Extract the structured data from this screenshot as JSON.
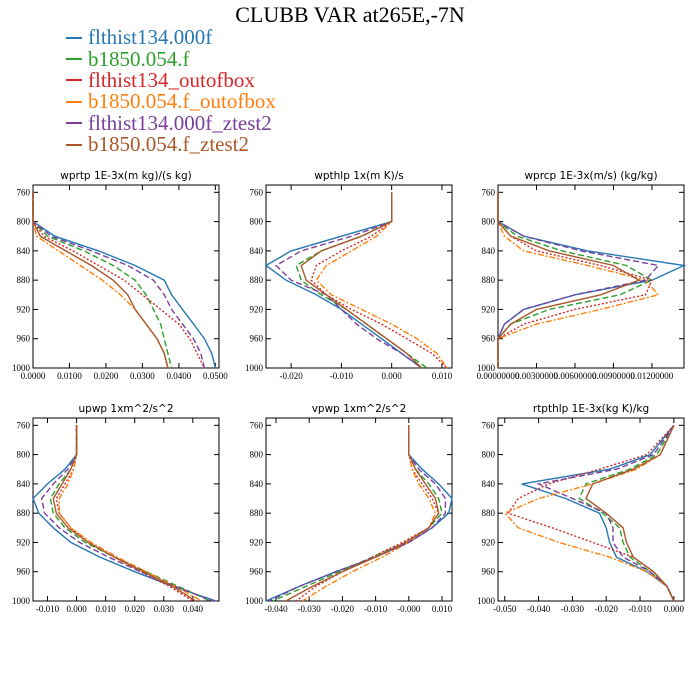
{
  "title": "CLUBB VAR at265E,-7N",
  "legend": [
    {
      "label": "flthist134.000f",
      "color": "#2678b3",
      "dash": ""
    },
    {
      "label": "b1850.054.f",
      "color": "#2ca02c",
      "dash": "6,3"
    },
    {
      "label": "flthist134_outofbox",
      "color": "#d62728",
      "dash": "2,2"
    },
    {
      "label": "b1850.054.f_outofbox",
      "color": "#ff7f0e",
      "dash": "6,2,2,2"
    },
    {
      "label": "flthist134.000f_ztest2",
      "color": "#7b3f9e",
      "dash": "6,3"
    },
    {
      "label": "b1850.054.f_ztest2",
      "color": "#a9582b",
      "dash": ""
    }
  ],
  "chart_data": [
    {
      "type": "line",
      "title": "wprtp  1E-3x(m kg)/(s kg)",
      "xlim": [
        0.0,
        0.051
      ],
      "ylim": [
        1000,
        750
      ],
      "xticks": [
        "0.0000",
        "0.0100",
        "0.0200",
        "0.0300",
        "0.0400",
        "0.0500"
      ],
      "xtick_values": [
        0.0,
        0.01,
        0.02,
        0.03,
        0.04,
        0.05
      ],
      "yticks": [
        760,
        800,
        840,
        880,
        920,
        960,
        1000
      ],
      "y": [
        760,
        800,
        820,
        840,
        860,
        880,
        900,
        920,
        940,
        960,
        980,
        1000
      ],
      "series": [
        {
          "values": [
            0.0,
            0.0,
            0.006,
            0.018,
            0.028,
            0.036,
            0.038,
            0.041,
            0.044,
            0.047,
            0.049,
            0.05
          ]
        },
        {
          "values": [
            0.0,
            0.0,
            0.004,
            0.014,
            0.022,
            0.028,
            0.031,
            0.033,
            0.035,
            0.036,
            0.037,
            0.038
          ]
        },
        {
          "values": [
            0.0,
            0.0,
            0.003,
            0.011,
            0.018,
            0.025,
            0.03,
            0.035,
            0.04,
            0.043,
            0.045,
            0.047
          ]
        },
        {
          "values": [
            0.0,
            0.0,
            0.001,
            0.007,
            0.013,
            0.019,
            0.024,
            0.028,
            0.031,
            0.034,
            0.036,
            0.037
          ]
        },
        {
          "values": [
            0.0,
            0.0,
            0.005,
            0.016,
            0.026,
            0.033,
            0.036,
            0.038,
            0.041,
            0.044,
            0.046,
            0.047
          ]
        },
        {
          "values": [
            0.0,
            0.0,
            0.002,
            0.009,
            0.016,
            0.022,
            0.026,
            0.028,
            0.031,
            0.034,
            0.036,
            0.037
          ]
        }
      ]
    },
    {
      "type": "line",
      "title": "wpthlp  1x(m K)/s",
      "xlim": [
        -0.025,
        0.012
      ],
      "ylim": [
        1000,
        750
      ],
      "xticks": [
        "-0.020",
        "-0.010",
        "0.000",
        "0.010"
      ],
      "xtick_values": [
        -0.02,
        -0.01,
        0.0,
        0.01
      ],
      "yticks": [
        760,
        800,
        840,
        880,
        920,
        960,
        1000
      ],
      "y": [
        760,
        800,
        820,
        840,
        860,
        880,
        900,
        920,
        940,
        960,
        980,
        1000
      ],
      "series": [
        {
          "values": [
            0.0,
            0.0,
            -0.01,
            -0.02,
            -0.025,
            -0.021,
            -0.015,
            -0.01,
            -0.006,
            -0.002,
            0.002,
            0.006
          ]
        },
        {
          "values": [
            0.0,
            0.0,
            -0.006,
            -0.014,
            -0.019,
            -0.018,
            -0.014,
            -0.009,
            -0.005,
            -0.001,
            0.003,
            0.007
          ]
        },
        {
          "values": [
            0.0,
            0.0,
            -0.004,
            -0.01,
            -0.015,
            -0.016,
            -0.013,
            -0.008,
            -0.002,
            0.003,
            0.008,
            0.011
          ]
        },
        {
          "values": [
            0.0,
            0.0,
            -0.003,
            -0.008,
            -0.013,
            -0.015,
            -0.012,
            -0.006,
            0.0,
            0.005,
            0.009,
            0.011
          ]
        },
        {
          "values": [
            0.0,
            0.0,
            -0.008,
            -0.018,
            -0.023,
            -0.02,
            -0.013,
            -0.01,
            -0.007,
            -0.003,
            0.002,
            0.006
          ]
        },
        {
          "values": [
            0.0,
            0.0,
            -0.006,
            -0.014,
            -0.018,
            -0.017,
            -0.013,
            -0.009,
            -0.005,
            -0.001,
            0.003,
            0.006
          ]
        }
      ]
    },
    {
      "type": "line",
      "title": "wprcp  1E-3x(m/s) (kg/kg)",
      "xlim": [
        0.0,
        0.0145
      ],
      "ylim": [
        1000,
        750
      ],
      "xticks": [
        "0.00000000",
        "0.00300000",
        "0.00600000",
        "0.00900000",
        "0.01200000"
      ],
      "xtick_values": [
        0.0,
        0.003,
        0.006,
        0.009,
        0.012
      ],
      "yticks": [
        760,
        800,
        840,
        880,
        920,
        960,
        1000
      ],
      "y": [
        760,
        800,
        820,
        840,
        860,
        880,
        900,
        920,
        940,
        960,
        980,
        1000
      ],
      "series": [
        {
          "values": [
            0.0,
            0.0,
            0.002,
            0.007,
            0.0145,
            0.012,
            0.006,
            0.002,
            0.0005,
            0.0,
            0.0,
            0.0
          ]
        },
        {
          "values": [
            0.0,
            0.0,
            0.0015,
            0.005,
            0.01,
            0.012,
            0.0095,
            0.004,
            0.001,
            0.0,
            0.0,
            0.0
          ]
        },
        {
          "values": [
            0.0,
            0.0,
            0.001,
            0.003,
            0.008,
            0.012,
            0.0115,
            0.006,
            0.002,
            0.0,
            0.0,
            0.0
          ]
        },
        {
          "values": [
            0.0,
            0.0,
            0.0005,
            0.002,
            0.007,
            0.0115,
            0.0125,
            0.008,
            0.003,
            0.0,
            0.0,
            0.0
          ]
        },
        {
          "values": [
            0.0,
            0.0,
            0.002,
            0.0065,
            0.0125,
            0.0115,
            0.006,
            0.002,
            0.0005,
            0.0,
            0.0,
            0.0
          ]
        },
        {
          "values": [
            0.0,
            0.0,
            0.001,
            0.004,
            0.009,
            0.011,
            0.008,
            0.003,
            0.001,
            0.0,
            0.0,
            0.0
          ]
        }
      ]
    },
    {
      "type": "line",
      "title": "upwp  1xm^2/s^2",
      "xlim": [
        -0.015,
        0.049
      ],
      "ylim": [
        1000,
        750
      ],
      "xticks": [
        "-0.010",
        "0.000",
        "0.010",
        "0.020",
        "0.030",
        "0.040"
      ],
      "xtick_values": [
        -0.01,
        0.0,
        0.01,
        0.02,
        0.03,
        0.04
      ],
      "yticks": [
        760,
        800,
        840,
        880,
        920,
        960,
        1000
      ],
      "y": [
        760,
        800,
        820,
        840,
        860,
        880,
        900,
        920,
        940,
        960,
        980,
        1000
      ],
      "series": [
        {
          "values": [
            0.0,
            0.0,
            -0.004,
            -0.01,
            -0.015,
            -0.013,
            -0.008,
            -0.002,
            0.008,
            0.02,
            0.033,
            0.048
          ]
        },
        {
          "values": [
            0.0,
            0.0,
            -0.002,
            -0.006,
            -0.009,
            -0.008,
            -0.004,
            0.003,
            0.013,
            0.024,
            0.035,
            0.046
          ]
        },
        {
          "values": [
            0.0,
            0.0,
            -0.001,
            -0.004,
            -0.007,
            -0.006,
            -0.002,
            0.004,
            0.013,
            0.022,
            0.032,
            0.04
          ]
        },
        {
          "values": [
            0.0,
            0.0,
            -0.001,
            -0.003,
            -0.006,
            -0.006,
            -0.002,
            0.005,
            0.014,
            0.024,
            0.034,
            0.043
          ]
        },
        {
          "values": [
            0.0,
            0.0,
            -0.003,
            -0.008,
            -0.012,
            -0.011,
            -0.006,
            0.001,
            0.011,
            0.022,
            0.034,
            0.047
          ]
        },
        {
          "values": [
            0.0,
            0.0,
            -0.002,
            -0.005,
            -0.008,
            -0.007,
            -0.003,
            0.004,
            0.013,
            0.023,
            0.033,
            0.041
          ]
        }
      ]
    },
    {
      "type": "line",
      "title": "vpwp  1xm^2/s^2",
      "xlim": [
        -0.043,
        0.013
      ],
      "ylim": [
        1000,
        750
      ],
      "xticks": [
        "-0.040",
        "-0.030",
        "-0.020",
        "-0.010",
        "-0.000",
        "0.010"
      ],
      "xtick_values": [
        -0.04,
        -0.03,
        -0.02,
        -0.01,
        0.0,
        0.01
      ],
      "yticks": [
        760,
        800,
        840,
        880,
        920,
        960,
        1000
      ],
      "y": [
        760,
        800,
        820,
        840,
        860,
        880,
        900,
        920,
        940,
        960,
        980,
        1000
      ],
      "series": [
        {
          "values": [
            0.0,
            0.0,
            0.004,
            0.009,
            0.013,
            0.012,
            0.007,
            0.0,
            -0.01,
            -0.022,
            -0.033,
            -0.043
          ]
        },
        {
          "values": [
            0.0,
            0.0,
            0.002,
            0.006,
            0.009,
            0.01,
            0.006,
            -0.001,
            -0.011,
            -0.021,
            -0.031,
            -0.041
          ]
        },
        {
          "values": [
            0.0,
            0.0,
            0.001,
            0.004,
            0.007,
            0.009,
            0.006,
            -0.002,
            -0.011,
            -0.02,
            -0.028,
            -0.034
          ]
        },
        {
          "values": [
            0.0,
            0.0,
            0.001,
            0.003,
            0.006,
            0.008,
            0.006,
            0.0,
            -0.008,
            -0.017,
            -0.025,
            -0.032
          ]
        },
        {
          "values": [
            0.0,
            0.0,
            0.003,
            0.008,
            0.011,
            0.011,
            0.007,
            0.0,
            -0.01,
            -0.022,
            -0.033,
            -0.042
          ]
        },
        {
          "values": [
            0.0,
            0.0,
            0.002,
            0.005,
            0.008,
            0.009,
            0.006,
            -0.001,
            -0.01,
            -0.02,
            -0.029,
            -0.037
          ]
        }
      ]
    },
    {
      "type": "line",
      "title": "rtpthlp  1E-3x(kg K)/kg",
      "xlim": [
        -0.052,
        0.003
      ],
      "ylim": [
        1000,
        750
      ],
      "xticks": [
        "-0.050",
        "-0.040",
        "-0.030",
        "-0.020",
        "-0.010",
        "0.000"
      ],
      "xtick_values": [
        -0.05,
        -0.04,
        -0.03,
        -0.02,
        -0.01,
        0.0
      ],
      "yticks": [
        760,
        800,
        840,
        880,
        920,
        960,
        1000
      ],
      "y": [
        760,
        800,
        820,
        840,
        860,
        880,
        900,
        920,
        940,
        960,
        980,
        1000
      ],
      "series": [
        {
          "values": [
            0.0,
            -0.007,
            -0.019,
            -0.045,
            -0.032,
            -0.022,
            -0.02,
            -0.019,
            -0.017,
            -0.008,
            -0.002,
            0.0
          ]
        },
        {
          "values": [
            0.0,
            -0.005,
            -0.013,
            -0.026,
            -0.028,
            -0.021,
            -0.016,
            -0.015,
            -0.013,
            -0.007,
            -0.002,
            0.0
          ]
        },
        {
          "values": [
            0.0,
            -0.008,
            -0.022,
            -0.037,
            -0.046,
            -0.049,
            -0.036,
            -0.024,
            -0.012,
            -0.006,
            -0.002,
            0.0
          ]
        },
        {
          "values": [
            0.0,
            -0.004,
            -0.011,
            -0.024,
            -0.04,
            -0.05,
            -0.046,
            -0.034,
            -0.019,
            -0.008,
            -0.002,
            0.0
          ]
        },
        {
          "values": [
            0.0,
            -0.006,
            -0.017,
            -0.04,
            -0.03,
            -0.02,
            -0.018,
            -0.018,
            -0.015,
            -0.007,
            -0.002,
            0.0
          ]
        },
        {
          "values": [
            0.0,
            -0.004,
            -0.012,
            -0.024,
            -0.026,
            -0.02,
            -0.015,
            -0.014,
            -0.012,
            -0.006,
            -0.002,
            0.0
          ]
        }
      ]
    }
  ]
}
